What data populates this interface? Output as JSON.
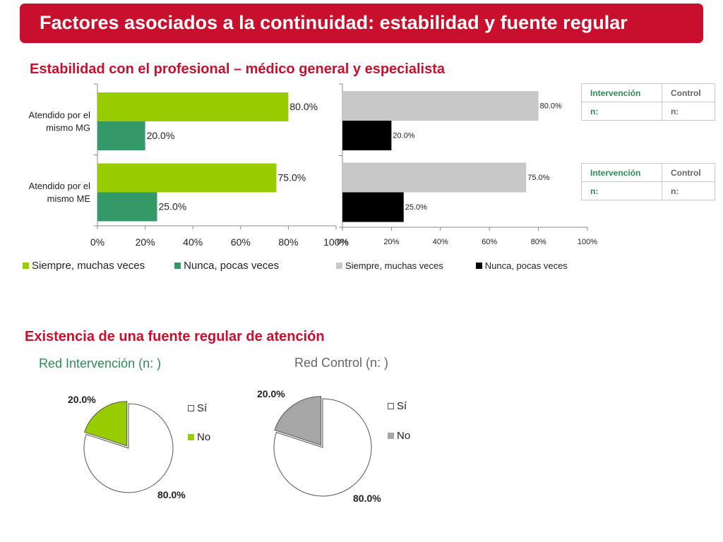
{
  "header": {
    "title": "Factores asociados a la continuidad: estabilidad y fuente regular"
  },
  "section1": {
    "title": "Estabilidad con el profesional – médico general y especialista"
  },
  "section2": {
    "title": "Existencia de una fuente regular de atención",
    "pie_left_title": "Red Intervención (n: )",
    "pie_right_title": "Red Control  (n: )"
  },
  "tables": [
    {
      "col1": "Intervención",
      "col2": "Control",
      "row1": "n:",
      "row2": "n:"
    },
    {
      "col1": "Intervención",
      "col2": "Control",
      "row1": "n:",
      "row2": "n:"
    }
  ],
  "colors": {
    "brand": "#c8102e",
    "green_light": "#99cc00",
    "green_dark": "#339966",
    "grey_light": "#c8c8c8",
    "black": "#000000",
    "grey_mid": "#a6a6a6",
    "table_header": "#2e8b57"
  },
  "chart_data": [
    {
      "type": "bar",
      "orientation": "horizontal",
      "categories": [
        "Atendido por el mismo MG",
        "Atendido por el mismo ME"
      ],
      "category_lines": [
        [
          "Atendido por el",
          "mismo MG"
        ],
        [
          "Atendido por el",
          "mismo ME"
        ]
      ],
      "series": [
        {
          "name": "Siempre, muchas veces",
          "values": [
            80.0,
            75.0
          ],
          "labels": [
            "80.0%",
            "75.0%"
          ]
        },
        {
          "name": "Nunca, pocas veces",
          "values": [
            20.0,
            25.0
          ],
          "labels": [
            "20.0%",
            "25.0%"
          ]
        }
      ],
      "xlim": [
        0,
        100
      ],
      "xticks": [
        "0%",
        "20%",
        "40%",
        "60%",
        "80%",
        "100%"
      ],
      "legend": "bottom"
    },
    {
      "type": "bar",
      "orientation": "horizontal",
      "series": [
        {
          "name": "Siempre, muchas veces",
          "values": [
            80.0,
            75.0
          ],
          "labels": [
            "80.0%",
            "75.0%"
          ]
        },
        {
          "name": "Nunca, pocas veces",
          "values": [
            20.0,
            25.0
          ],
          "labels": [
            "20.0%",
            "25.0%"
          ]
        }
      ],
      "xlim": [
        0,
        100
      ],
      "xticks": [
        "0%",
        "20%",
        "40%",
        "60%",
        "80%",
        "100%"
      ],
      "legend": "bottom"
    },
    {
      "type": "pie",
      "labels": [
        "Sí",
        "No"
      ],
      "values": [
        80.0,
        20.0
      ],
      "value_labels": [
        "80.0%",
        "20.0%"
      ],
      "legend": "right"
    },
    {
      "type": "pie",
      "labels": [
        "Sí",
        "No"
      ],
      "values": [
        80.0,
        20.0
      ],
      "value_labels": [
        "80.0%",
        "20.0%"
      ],
      "legend": "right"
    }
  ]
}
